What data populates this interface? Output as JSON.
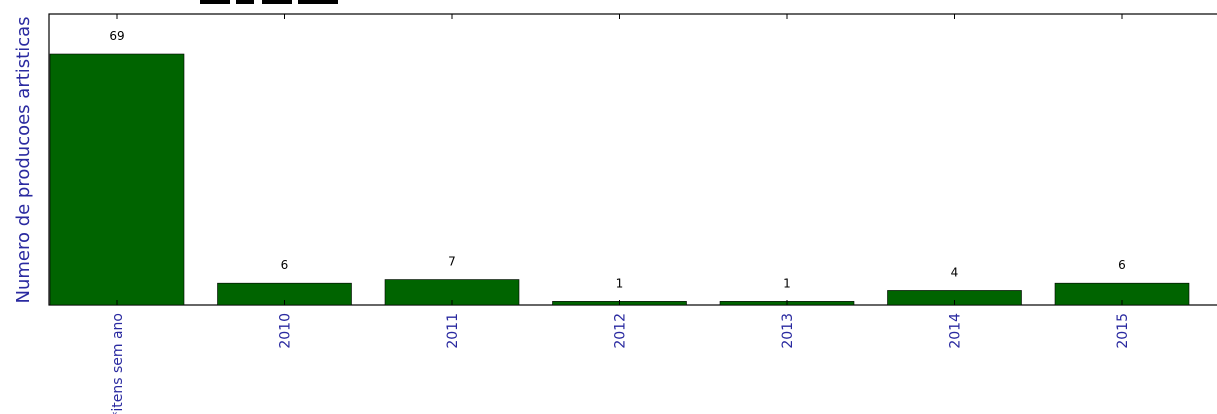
{
  "chart_data": {
    "type": "bar",
    "title": "",
    "xlabel": "",
    "ylabel": "Numero de producoes artisticas",
    "categories": [
      "*itens sem ano",
      "2010",
      "2011",
      "2012",
      "2013",
      "2014",
      "2015"
    ],
    "values": [
      69,
      6,
      7,
      1,
      1,
      4,
      6
    ],
    "value_labels": [
      "69",
      "6",
      "7",
      "1",
      "1",
      "4",
      "6"
    ],
    "ylim": [
      0,
      80
    ],
    "grid": false,
    "legend": "none",
    "bar_color": "#006400",
    "label_color": "#2a2aa0"
  }
}
